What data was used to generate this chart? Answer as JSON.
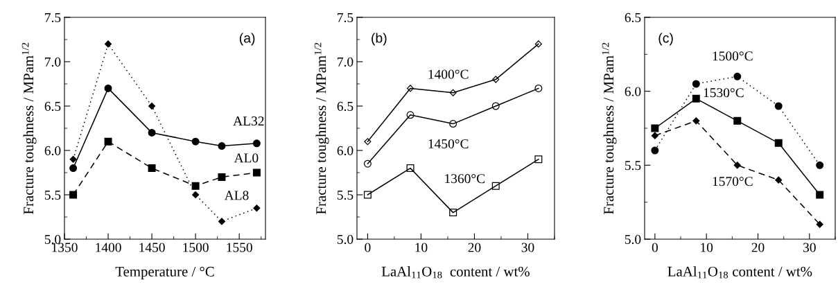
{
  "chart_data": [
    {
      "type": "line",
      "xlabel": "Temperature / °C",
      "ylabel": "Fracture toughness / MPam$^{1/2}$",
      "annotations": [
        "(a)"
      ],
      "x": [
        1360,
        1400,
        1450,
        1500,
        1530,
        1570
      ],
      "xlim": [
        1350,
        1580
      ],
      "xticks": [
        1350,
        1400,
        1450,
        1500,
        1550
      ],
      "ylim": [
        5.0,
        7.5
      ],
      "yticks": [
        {
          "value": 5.0,
          "label": "5.0"
        },
        5.5,
        {
          "value": 6.0,
          "label": "6.0"
        },
        6.5,
        {
          "value": 7.0,
          "label": "7.0"
        },
        7.5
      ],
      "grid": false,
      "legend": false,
      "series": [
        {
          "name": "AL32",
          "color": "#000000",
          "marker": "circle",
          "line_style": "solid",
          "values": [
            5.8,
            6.7,
            6.2,
            6.1,
            6.05,
            6.08
          ]
        },
        {
          "name": "AL0",
          "color": "#000000",
          "marker": "square",
          "line_style": "dashed",
          "values": [
            5.5,
            6.1,
            5.8,
            5.6,
            5.7,
            5.75
          ]
        },
        {
          "name": "AL8",
          "color": "#000000",
          "marker": "diamond",
          "line_style": "dotted",
          "values": [
            5.9,
            7.2,
            6.5,
            5.5,
            5.2,
            5.35
          ]
        }
      ]
    },
    {
      "type": "line",
      "xlabel": "LaAl$_{11}$O$_{18}$  content / wt%",
      "ylabel": "Fracture toughness / MPam$^{1/2}$",
      "annotations": [
        "(b)"
      ],
      "x": [
        0,
        8,
        16,
        24,
        32
      ],
      "xlim": [
        -2,
        35
      ],
      "xticks": [
        0,
        10,
        20,
        30
      ],
      "ylim": [
        5.0,
        7.5
      ],
      "yticks": [
        {
          "value": 5.0,
          "label": "5.0"
        },
        5.5,
        {
          "value": 6.0,
          "label": "6.0"
        },
        6.5,
        {
          "value": 7.0,
          "label": "7.0"
        },
        7.5
      ],
      "grid": false,
      "legend": false,
      "series": [
        {
          "name": "1400°C",
          "color": "#000000",
          "marker": "diamond",
          "line_style": "solid",
          "values": [
            6.1,
            6.7,
            6.65,
            6.8,
            7.2
          ]
        },
        {
          "name": "1450°C",
          "color": "#000000",
          "marker": "circle",
          "line_style": "solid",
          "values": [
            5.85,
            6.4,
            6.3,
            6.5,
            6.7
          ]
        },
        {
          "name": "1360°C",
          "color": "#000000",
          "marker": "square",
          "line_style": "solid",
          "values": [
            5.5,
            5.8,
            5.3,
            5.6,
            5.9
          ]
        }
      ]
    },
    {
      "type": "line",
      "xlabel": "LaAl$_{11}$O$_{18}$ content / wt%",
      "ylabel": "Fracture toughness / MPam$^{1/2}$",
      "annotations": [
        "(c)"
      ],
      "x": [
        0,
        8,
        16,
        24,
        32
      ],
      "xlim": [
        -2,
        35
      ],
      "xticks": [
        0,
        10,
        20,
        30
      ],
      "ylim": [
        5.0,
        6.5
      ],
      "yticks": [
        {
          "value": 5.0,
          "label": "5.0"
        },
        5.5,
        {
          "value": 6.0,
          "label": "6.0"
        },
        6.5
      ],
      "grid": false,
      "legend": false,
      "series": [
        {
          "name": "1500°C",
          "color": "#000000",
          "marker": "circle",
          "line_style": "dotted",
          "values": [
            5.6,
            6.05,
            6.1,
            5.9,
            5.5
          ]
        },
        {
          "name": "1530°C",
          "color": "#000000",
          "marker": "square",
          "line_style": "solid",
          "values": [
            5.75,
            5.95,
            5.8,
            5.65,
            5.3
          ]
        },
        {
          "name": "1570°C",
          "color": "#000000",
          "marker": "diamond",
          "line_style": "dashed",
          "values": [
            5.7,
            5.8,
            5.5,
            5.4,
            5.1
          ]
        }
      ]
    }
  ]
}
